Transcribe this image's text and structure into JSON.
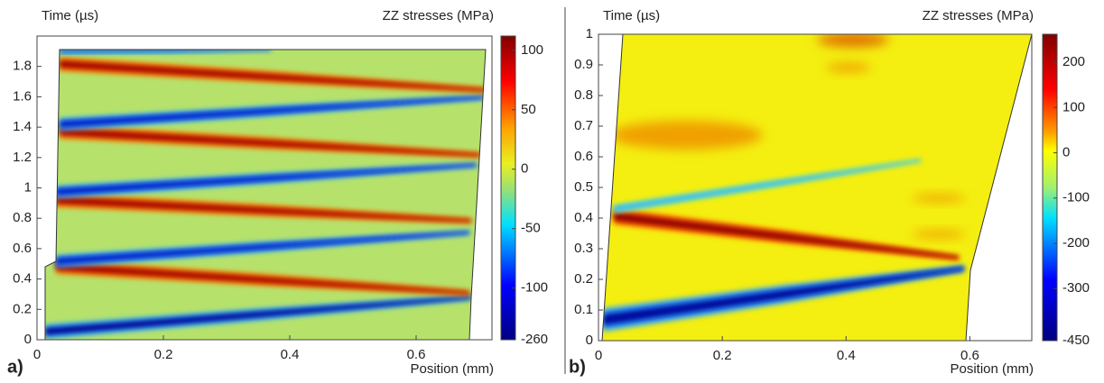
{
  "chart_data": [
    {
      "type": "heatmap",
      "panel_label": "a)",
      "y_label": "Time (µs)",
      "colorbar_label": "ZZ stresses (MPa)",
      "x_label": "Position (mm)",
      "xlim": [
        0,
        0.72
      ],
      "xticks": [
        0,
        0.2,
        0.4,
        0.6
      ],
      "ylim": [
        0,
        2
      ],
      "yticks": [
        0,
        0.2,
        0.4,
        0.6,
        0.8,
        1,
        1.2,
        1.4,
        1.6,
        1.8
      ],
      "clim": [
        -260,
        112
      ],
      "cticks": [
        100,
        50,
        0,
        -50,
        -100,
        -260
      ]
    },
    {
      "type": "heatmap",
      "panel_label": "b)",
      "y_label": "Time (µs)",
      "colorbar_label": "ZZ stresses (MPa)",
      "x_label": "Position (mm)",
      "xlim": [
        0,
        0.7
      ],
      "xticks": [
        0,
        0.2,
        0.4,
        0.6
      ],
      "ylim": [
        0,
        1
      ],
      "yticks": [
        0,
        0.1,
        0.2,
        0.3,
        0.4,
        0.5,
        0.6,
        0.7,
        0.8,
        0.9,
        1
      ],
      "clim": [
        -450,
        262
      ],
      "cticks": [
        200,
        100,
        0,
        -100,
        -200,
        -300,
        -450
      ]
    }
  ]
}
